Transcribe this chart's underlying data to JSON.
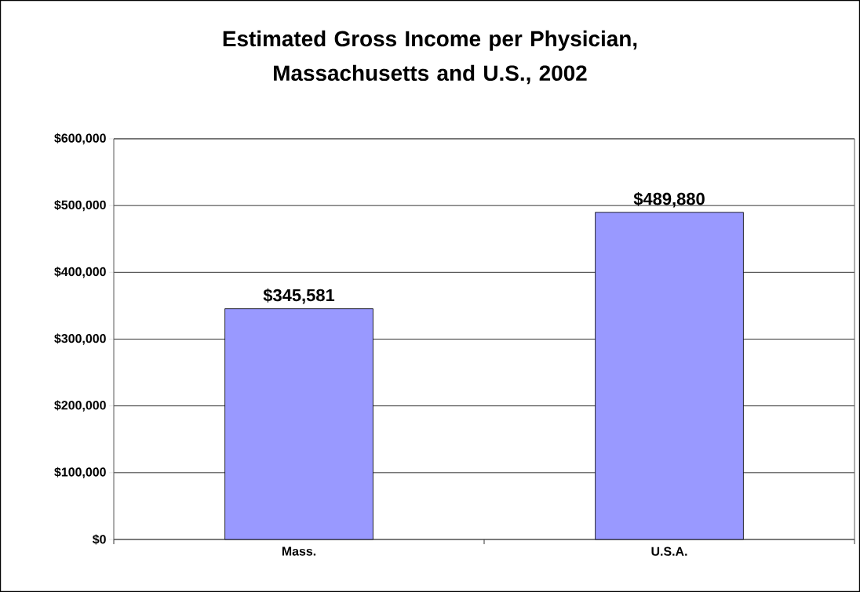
{
  "chart_data": {
    "type": "bar",
    "title": "Estimated Gross Income per Physician, Massachusetts and U.S., 2002",
    "categories": [
      "Mass.",
      "U.S.A."
    ],
    "values": [
      345581,
      489880
    ],
    "value_labels": [
      "$345,581",
      "$489,880"
    ],
    "color": "#9999ff",
    "ylim": [
      0,
      600000
    ],
    "yticks": [
      {
        "value": 0,
        "label": "$0"
      },
      {
        "value": 100000,
        "label": "$100,000"
      },
      {
        "value": 200000,
        "label": "$200,000"
      },
      {
        "value": 300000,
        "label": "$300,000"
      },
      {
        "value": 400000,
        "label": "$400,000"
      },
      {
        "value": 500000,
        "label": "$500,000"
      },
      {
        "value": 600000,
        "label": "$600,000"
      }
    ],
    "grid": "y"
  }
}
